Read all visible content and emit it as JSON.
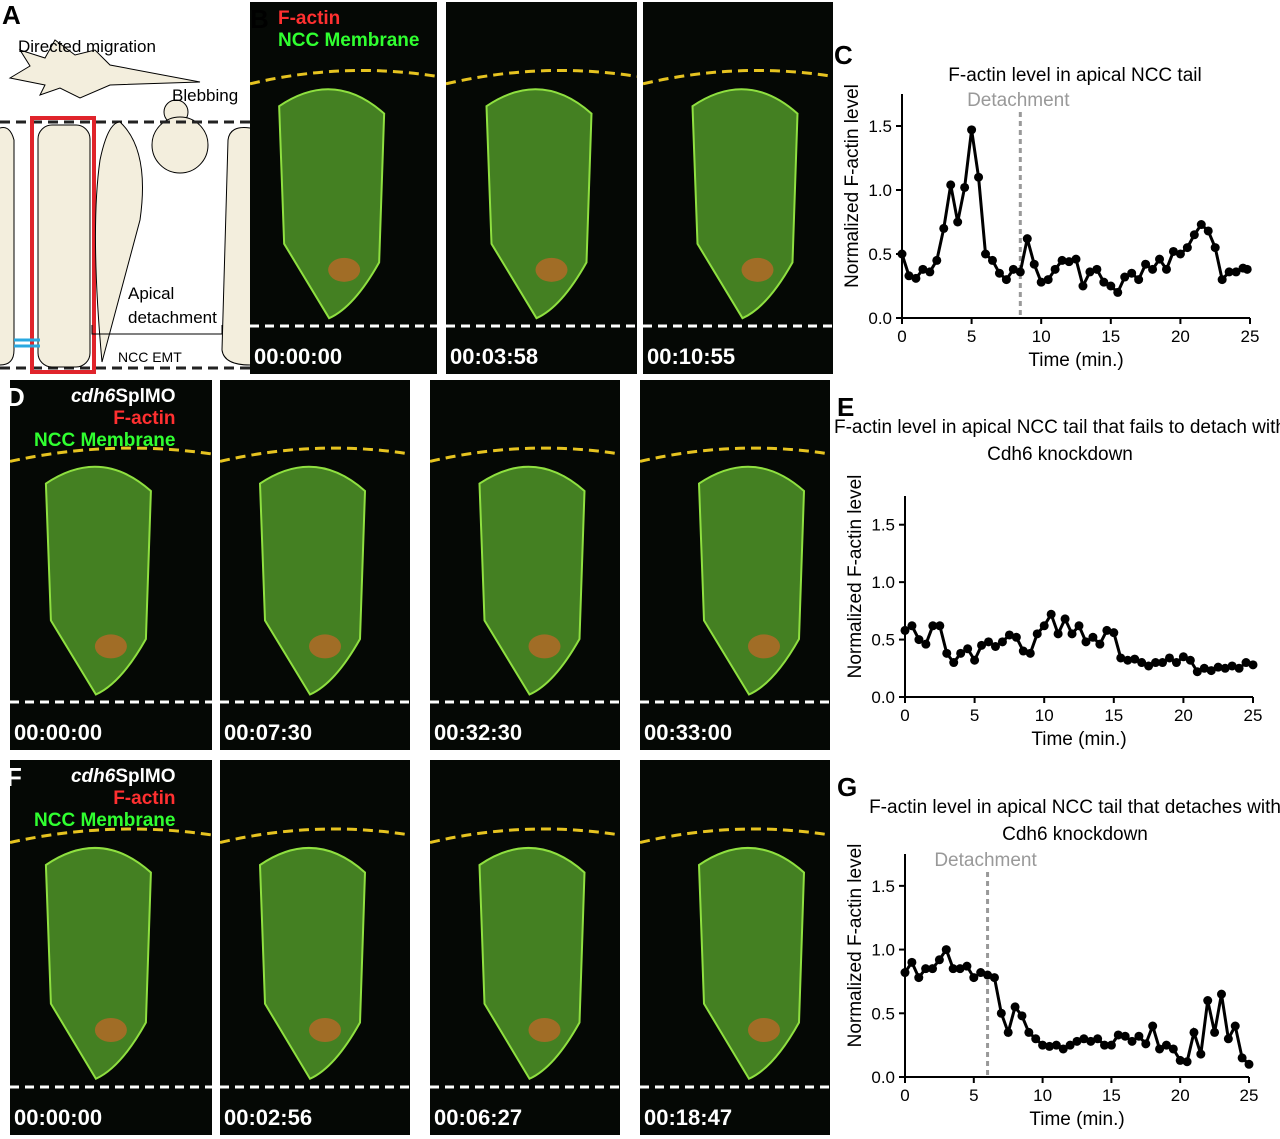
{
  "figure": {
    "A": {
      "label": "A",
      "texts": [
        "Directed migration",
        "Blebbing",
        "Apical detachment",
        "NCC EMT"
      ]
    },
    "B": {
      "label": "B",
      "legend": [
        "F-actin",
        "NCC Membrane"
      ],
      "timestamps": [
        "00:00:00",
        "00:03:58",
        "00:10:55"
      ]
    },
    "D": {
      "label": "D",
      "gene": "cdh6",
      "suffix": "SplMO",
      "legend": [
        "F-actin",
        "NCC Membrane"
      ],
      "timestamps": [
        "00:00:00",
        "00:07:30",
        "00:32:30",
        "00:33:00"
      ]
    },
    "F": {
      "label": "F",
      "gene": "cdh6",
      "suffix": "SplMO",
      "legend": [
        "F-actin",
        "NCC Membrane"
      ],
      "timestamps": [
        "00:00:00",
        "00:02:56",
        "00:06:27",
        "00:18:47"
      ]
    }
  },
  "chart_data": [
    {
      "type": "line",
      "label": "C",
      "title": "F-actin level in apical NCC tail",
      "xlabel": "Time (min.)",
      "ylabel": "Normalized F-actin level",
      "color": "#000000",
      "annotation": {
        "text": "Detachment",
        "x": 8.5
      },
      "xlim": [
        0,
        25
      ],
      "ylim": [
        0,
        1.75
      ],
      "xticks": [
        0,
        5,
        10,
        15,
        20,
        25
      ],
      "yticks": [
        {
          "value": 0,
          "label": "0.0"
        },
        0.5,
        {
          "value": 1,
          "label": "1.0"
        },
        1.5
      ],
      "x": [
        0,
        0.5,
        1,
        1.5,
        2,
        2.5,
        3,
        3.5,
        4,
        4.5,
        5,
        5.5,
        6,
        6.5,
        7,
        7.5,
        8,
        8.5,
        9,
        9.5,
        10,
        10.5,
        11,
        11.5,
        12,
        12.5,
        13,
        13.5,
        14,
        14.5,
        15,
        15.5,
        16,
        16.5,
        17,
        17.5,
        18,
        18.5,
        19,
        19.5,
        20,
        20.5,
        21,
        21.5,
        22,
        22.5,
        23,
        23.5,
        24,
        24.5,
        24.8
      ],
      "values": [
        0.5,
        0.33,
        0.31,
        0.38,
        0.36,
        0.45,
        0.7,
        1.04,
        0.75,
        1.02,
        1.47,
        1.1,
        0.5,
        0.45,
        0.35,
        0.3,
        0.38,
        0.36,
        0.62,
        0.42,
        0.28,
        0.3,
        0.38,
        0.45,
        0.44,
        0.46,
        0.25,
        0.36,
        0.38,
        0.28,
        0.25,
        0.2,
        0.32,
        0.35,
        0.3,
        0.42,
        0.38,
        0.46,
        0.38,
        0.52,
        0.5,
        0.55,
        0.65,
        0.73,
        0.68,
        0.55,
        0.3,
        0.36,
        0.36,
        0.39,
        0.38
      ]
    },
    {
      "type": "line",
      "label": "E",
      "title": "F-actin level in apical NCC tail that fails to detach with Cdh6 knockdown",
      "xlabel": "Time (min.)",
      "ylabel": "Normalized F-actin level",
      "color": "#000000",
      "xlim": [
        0,
        25
      ],
      "ylim": [
        0,
        1.75
      ],
      "xticks": [
        0,
        5,
        10,
        15,
        20,
        25
      ],
      "yticks": [
        {
          "value": 0,
          "label": "0.0"
        },
        0.5,
        {
          "value": 1,
          "label": "1.0"
        },
        1.5
      ],
      "x": [
        0,
        0.5,
        1,
        1.5,
        2,
        2.5,
        3,
        3.5,
        4,
        4.5,
        5,
        5.5,
        6,
        6.5,
        7,
        7.5,
        8,
        8.5,
        9,
        9.5,
        10,
        10.5,
        11,
        11.5,
        12,
        12.5,
        13,
        13.5,
        14,
        14.5,
        15,
        15.5,
        16,
        16.5,
        17,
        17.5,
        18,
        18.5,
        19,
        19.5,
        20,
        20.5,
        21,
        21.5,
        22,
        22.5,
        23,
        23.5,
        24,
        24.5,
        25
      ],
      "values": [
        0.58,
        0.62,
        0.5,
        0.46,
        0.62,
        0.62,
        0.38,
        0.3,
        0.38,
        0.42,
        0.32,
        0.45,
        0.48,
        0.44,
        0.48,
        0.54,
        0.52,
        0.4,
        0.38,
        0.55,
        0.62,
        0.72,
        0.55,
        0.68,
        0.55,
        0.62,
        0.48,
        0.52,
        0.46,
        0.58,
        0.56,
        0.34,
        0.32,
        0.33,
        0.3,
        0.27,
        0.3,
        0.3,
        0.34,
        0.3,
        0.35,
        0.32,
        0.22,
        0.25,
        0.23,
        0.26,
        0.25,
        0.27,
        0.25,
        0.3,
        0.28
      ]
    },
    {
      "type": "line",
      "label": "G",
      "title": "F-actin level in apical NCC tail that detaches with Cdh6 knockdown",
      "xlabel": "Time (min.)",
      "ylabel": "Normalized F-actin level",
      "color": "#000000",
      "annotation": {
        "text": "Detachment",
        "x": 6
      },
      "xlim": [
        0,
        25
      ],
      "ylim": [
        0,
        1.75
      ],
      "xticks": [
        0,
        5,
        10,
        15,
        20,
        25
      ],
      "yticks": [
        {
          "value": 0,
          "label": "0.0"
        },
        0.5,
        {
          "value": 1,
          "label": "1.0"
        },
        1.5
      ],
      "x": [
        0,
        0.5,
        1,
        1.5,
        2,
        2.5,
        3,
        3.5,
        4,
        4.5,
        5,
        5.5,
        6,
        6.5,
        7,
        7.5,
        8,
        8.5,
        9,
        9.5,
        10,
        10.5,
        11,
        11.5,
        12,
        12.5,
        13,
        13.5,
        14,
        14.5,
        15,
        15.5,
        16,
        16.5,
        17,
        17.5,
        18,
        18.5,
        19,
        19.5,
        20,
        20.5,
        21,
        21.5,
        22,
        22.5,
        23,
        23.5,
        24,
        24.5,
        25
      ],
      "values": [
        0.82,
        0.9,
        0.78,
        0.85,
        0.85,
        0.92,
        1.0,
        0.85,
        0.85,
        0.87,
        0.78,
        0.82,
        0.8,
        0.78,
        0.5,
        0.35,
        0.55,
        0.48,
        0.35,
        0.3,
        0.25,
        0.24,
        0.25,
        0.22,
        0.25,
        0.28,
        0.3,
        0.28,
        0.3,
        0.25,
        0.25,
        0.33,
        0.32,
        0.28,
        0.32,
        0.26,
        0.4,
        0.22,
        0.25,
        0.22,
        0.13,
        0.12,
        0.35,
        0.18,
        0.6,
        0.35,
        0.65,
        0.3,
        0.4,
        0.15,
        0.1
      ]
    }
  ]
}
